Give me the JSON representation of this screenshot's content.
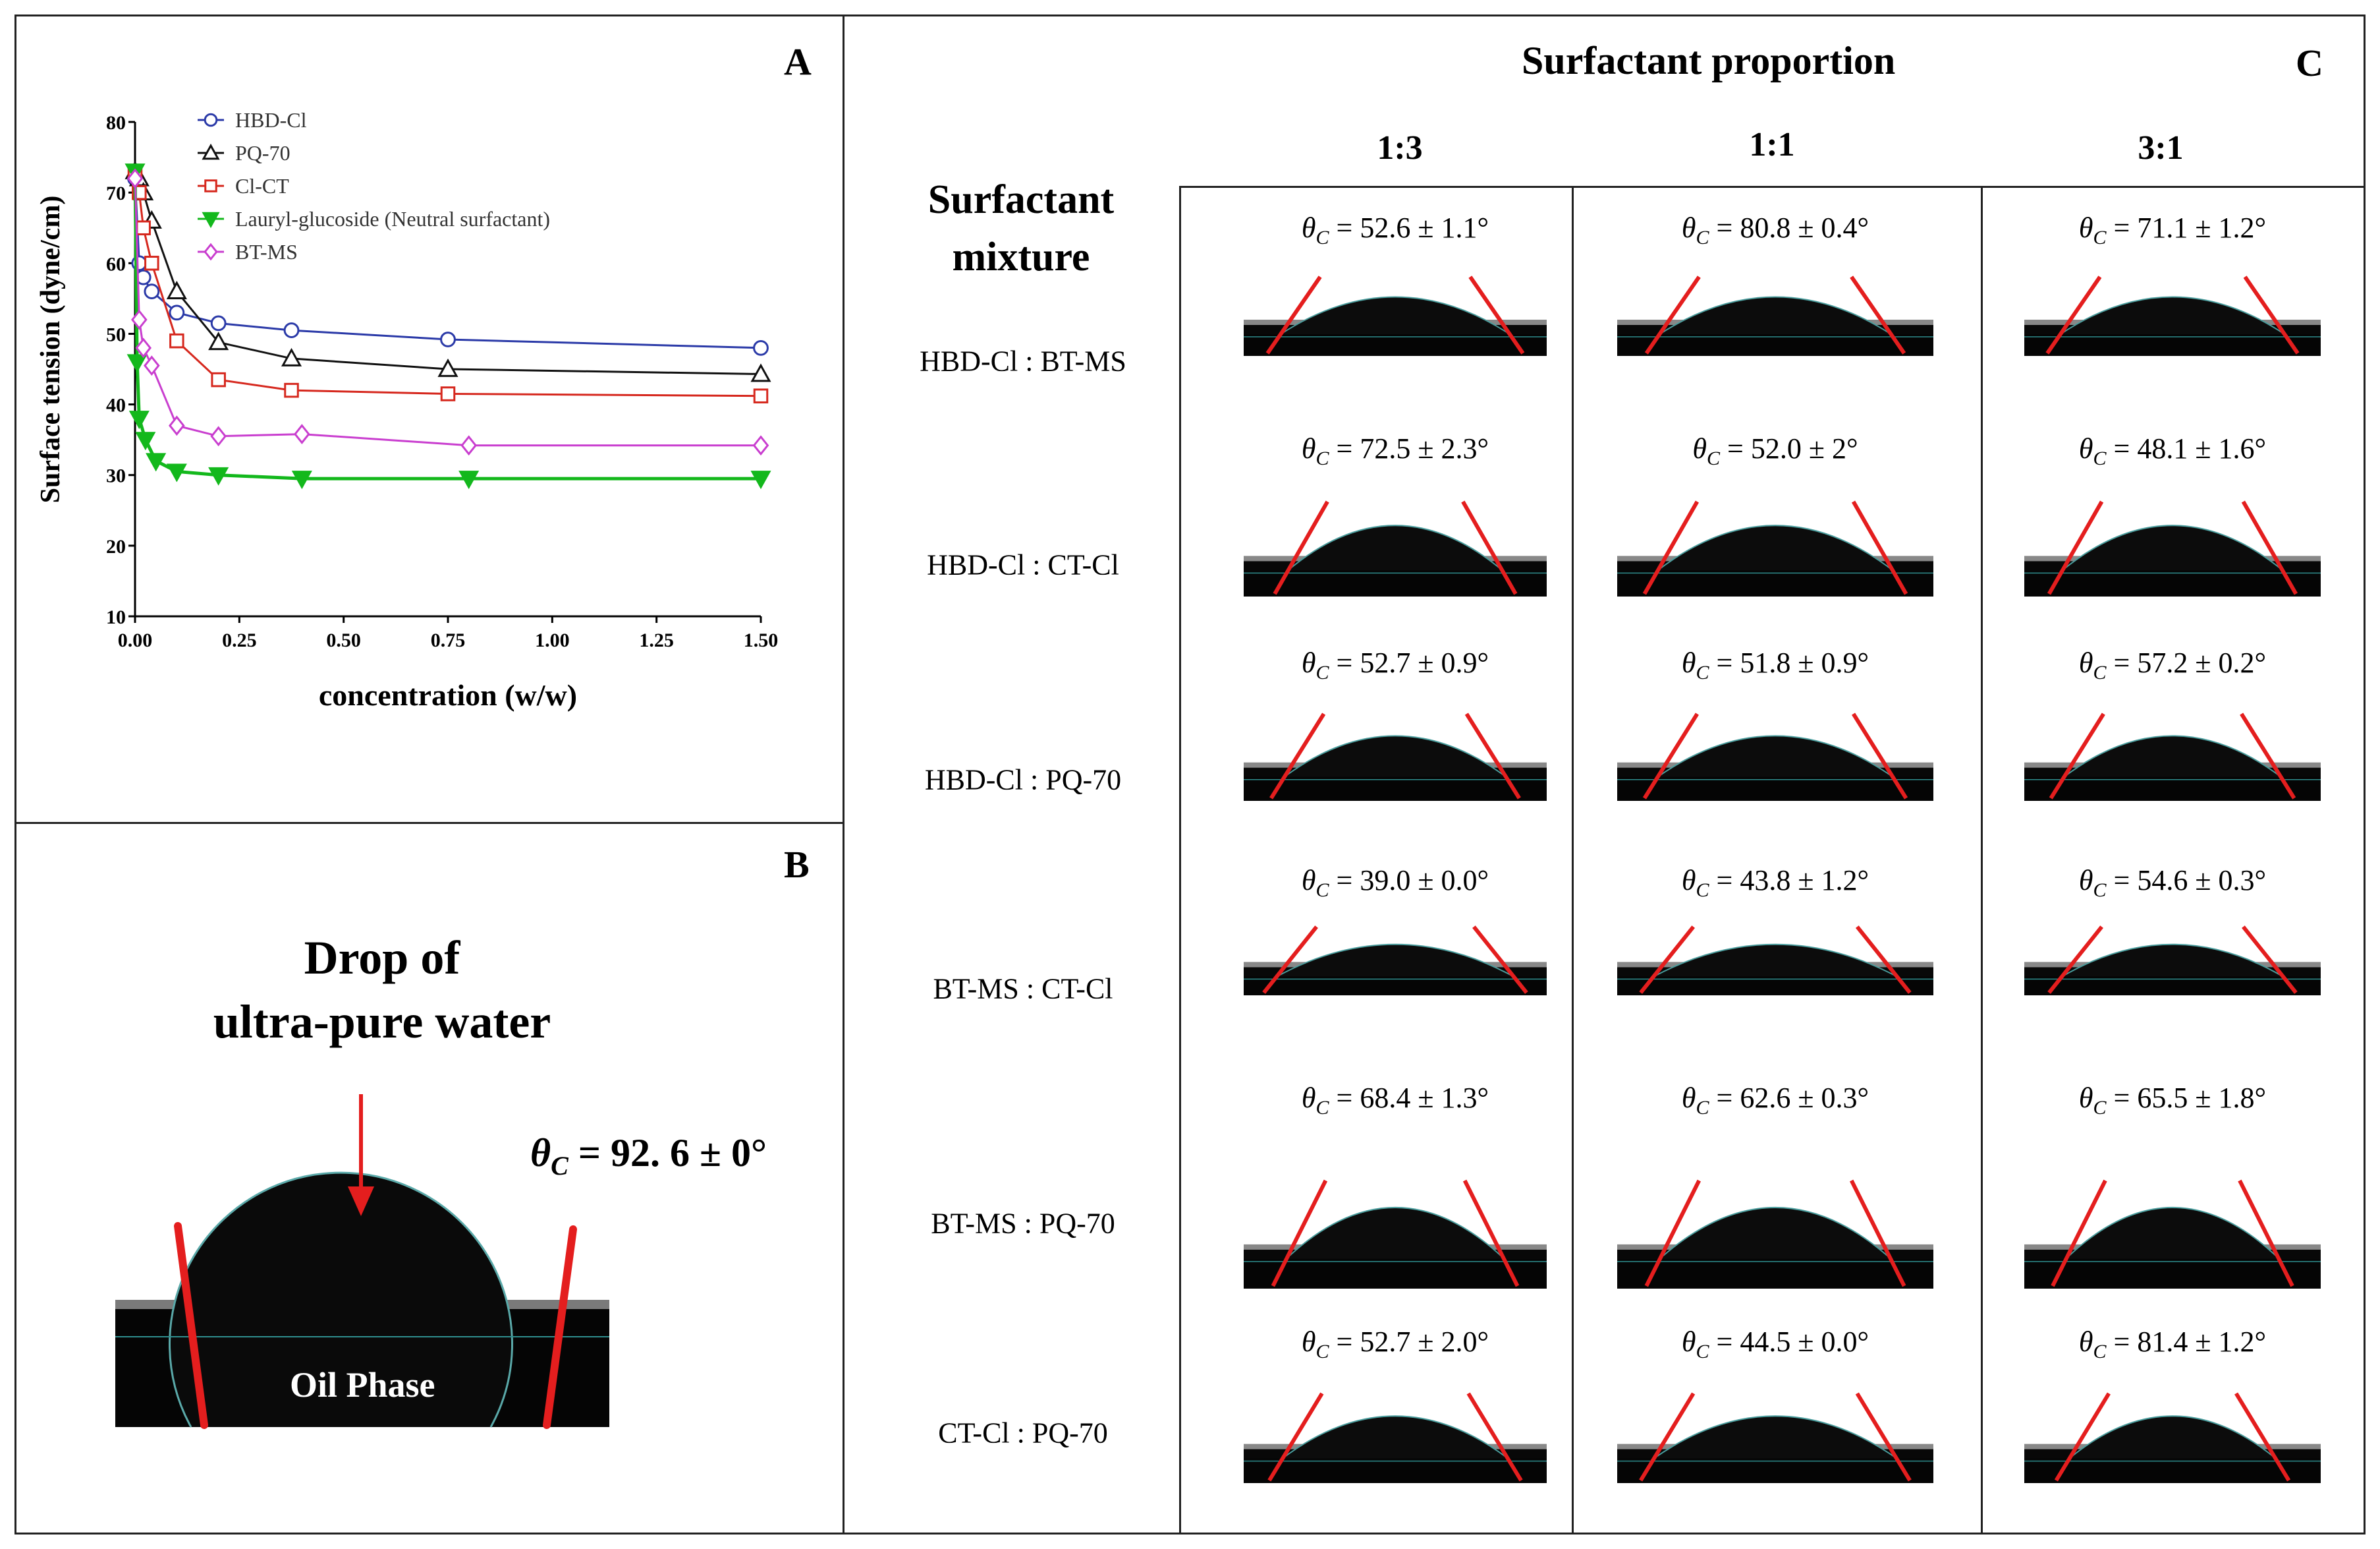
{
  "panels": {
    "a_letter": "A",
    "b_letter": "B",
    "c_letter": "C"
  },
  "chart_data": {
    "type": "line",
    "title": "",
    "xlabel": "concentration (w/w)",
    "ylabel": "Surface tension (dyne/cm)",
    "xlim": [
      0,
      1.5
    ],
    "ylim": [
      10,
      80
    ],
    "xticks": [
      "0.00",
      "0.25",
      "0.50",
      "0.75",
      "1.00",
      "1.25",
      "1.50"
    ],
    "yticks": [
      "10",
      "20",
      "30",
      "40",
      "50",
      "60",
      "70",
      "80"
    ],
    "legend_position": "top-right",
    "series": [
      {
        "name": "HBD-Cl",
        "color": "#2b3aa8",
        "marker": "circle",
        "x": [
          0,
          0.01,
          0.02,
          0.04,
          0.1,
          0.2,
          0.375,
          0.75,
          1.5
        ],
        "y": [
          72,
          60,
          58,
          56,
          53,
          51.5,
          50.5,
          49.2,
          48
        ]
      },
      {
        "name": "PQ-70",
        "color": "#111111",
        "marker": "triangle-up",
        "x": [
          0,
          0.01,
          0.02,
          0.04,
          0.1,
          0.2,
          0.375,
          0.75,
          1.5
        ],
        "y": [
          73,
          72,
          70,
          66,
          56,
          48.8,
          46.5,
          45,
          44.3
        ]
      },
      {
        "name": "Cl-CT",
        "color": "#d6281e",
        "marker": "square",
        "x": [
          0,
          0.01,
          0.02,
          0.04,
          0.1,
          0.2,
          0.375,
          0.75,
          1.5
        ],
        "y": [
          73,
          70,
          65,
          60,
          49,
          43.5,
          42,
          41.5,
          41.2
        ]
      },
      {
        "name": "Lauryl-glucoside (Neutral surfactant)",
        "color": "#13b81c",
        "marker": "triangle-down",
        "x": [
          0,
          0.005,
          0.01,
          0.025,
          0.05,
          0.1,
          0.2,
          0.4,
          0.8,
          1.5
        ],
        "y": [
          73,
          46,
          38,
          35,
          32,
          30.5,
          30,
          29.5,
          29.5,
          29.5
        ]
      },
      {
        "name": "BT-MS",
        "color": "#c93ecf",
        "marker": "diamond",
        "x": [
          0,
          0.01,
          0.02,
          0.04,
          0.1,
          0.2,
          0.4,
          0.8,
          1.5
        ],
        "y": [
          72,
          52,
          48,
          45.5,
          37,
          35.5,
          35.8,
          34.2,
          34.2
        ]
      }
    ]
  },
  "panel_b": {
    "title_line1": "Drop of",
    "title_line2": "ultra-pure water",
    "theta_symbol": "θ",
    "theta_sub": "C",
    "angle_text": " = 92. 6 ± 0°",
    "oil_label": "Oil Phase"
  },
  "panel_c": {
    "heading": "Surfactant proportion",
    "row_header_line1": "Surfactant",
    "row_header_line2": "mixture",
    "proportions": [
      "1:3",
      "1:1",
      "3:1"
    ],
    "theta_symbol": "θ",
    "theta_sub": "C",
    "rows": [
      {
        "mixture": "HBD-Cl : BT-MS",
        "angles": [
          " = 52.6 ± 1.1°",
          " = 80.8 ± 0.4°",
          " = 71.1 ± 1.2°"
        ]
      },
      {
        "mixture": "HBD-Cl : CT-Cl",
        "angles": [
          " = 72.5 ± 2.3°",
          " = 52.0 ± 2°",
          " = 48.1 ± 1.6°"
        ]
      },
      {
        "mixture": "HBD-Cl : PQ-70",
        "angles": [
          " = 52.7 ± 0.9°",
          " = 51.8 ± 0.9°",
          " = 57.2 ± 0.2°"
        ]
      },
      {
        "mixture": "BT-MS : CT-Cl",
        "angles": [
          " = 39.0 ± 0.0°",
          " = 43.8 ± 1.2°",
          " = 54.6 ± 0.3°"
        ]
      },
      {
        "mixture": "BT-MS : PQ-70",
        "angles": [
          " = 68.4 ± 1.3°",
          " = 62.6 ± 0.3°",
          " = 65.5 ± 1.8°"
        ]
      },
      {
        "mixture": "CT-Cl : PQ-70",
        "angles": [
          " = 52.7 ± 2.0°",
          " = 44.5 ± 0.0°",
          " = 81.4 ± 1.2°"
        ]
      }
    ]
  }
}
